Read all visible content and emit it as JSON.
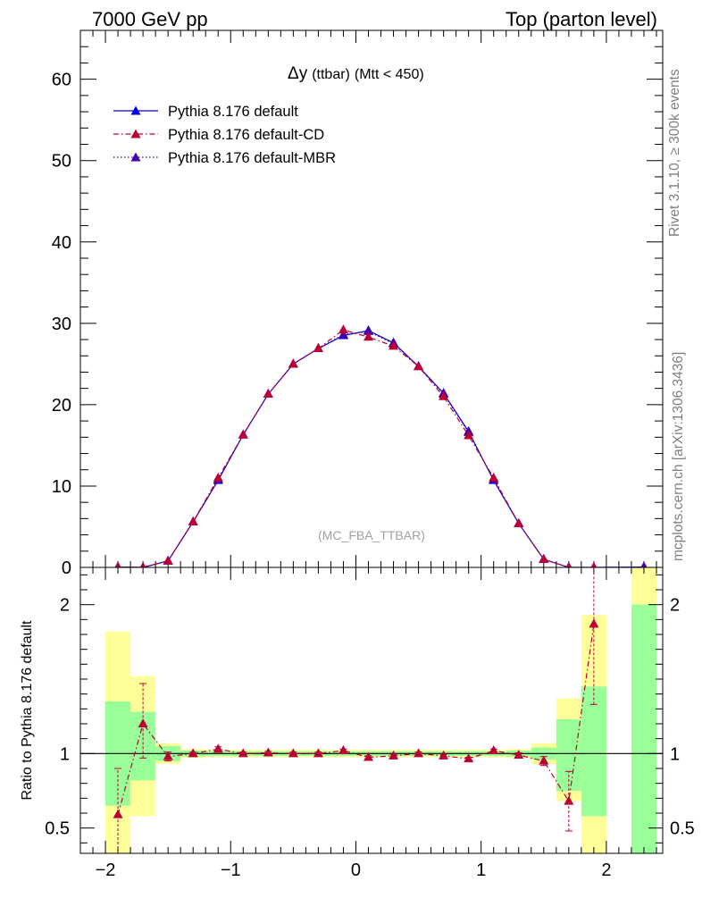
{
  "header": {
    "left": "7000 GeV pp",
    "right": "Top (parton level)"
  },
  "side_labels": {
    "rivet": "Rivet 3.1.10, ≥ 300k events",
    "mcplots": "mcplots.cern.ch [arXiv:1306.3436]"
  },
  "chart_data": [
    {
      "type": "line",
      "title": "Δy (ttbar) (Mtt < 450)",
      "title_main": "Δy",
      "title_small": "(ttbar)",
      "title_cut": "(Mtt < 450)",
      "watermark": "(MC_FBA_TTBAR)",
      "xlabel": "",
      "ylabel": "",
      "xlim": [
        -2.2,
        2.45
      ],
      "ylim": [
        0,
        66
      ],
      "yticks": [
        0,
        10,
        20,
        30,
        40,
        50,
        60
      ],
      "ytick_labels": [
        "0",
        "10",
        "20",
        "30",
        "40",
        "50",
        "60"
      ],
      "x": [
        -1.9,
        -1.7,
        -1.5,
        -1.3,
        -1.1,
        -0.9,
        -0.7,
        -0.5,
        -0.3,
        -0.1,
        0.1,
        0.3,
        0.5,
        0.7,
        0.9,
        1.1,
        1.3,
        1.5,
        1.7,
        1.9,
        2.3
      ],
      "series": [
        {
          "name": "Pythia 8.176 default",
          "color": "#0000dd",
          "style": "solid",
          "values": [
            0.05,
            0.0,
            0.8,
            5.6,
            10.7,
            16.3,
            21.3,
            25.0,
            26.9,
            28.5,
            29.1,
            27.6,
            24.7,
            21.4,
            16.7,
            10.7,
            5.4,
            1.0,
            0.0,
            0.0,
            0.05
          ]
        },
        {
          "name": "Pythia 8.176 default-CD",
          "color": "#bb0033",
          "style": "dashdot",
          "values": [
            0.03,
            0.0,
            0.8,
            5.6,
            11.0,
            16.3,
            21.3,
            25.0,
            26.9,
            29.2,
            28.3,
            27.2,
            24.7,
            21.0,
            16.2,
            11.0,
            5.4,
            1.0,
            0.0,
            0.0,
            null
          ]
        },
        {
          "name": "Pythia 8.176 default-MBR",
          "color": "#4400aa",
          "style": "dotted",
          "values": [
            0.05,
            0.0,
            0.8,
            5.6,
            10.8,
            16.3,
            21.3,
            25.0,
            26.9,
            28.6,
            29.0,
            27.5,
            24.7,
            21.3,
            16.6,
            10.8,
            5.4,
            1.0,
            0.0,
            0.0,
            0.05
          ]
        }
      ]
    },
    {
      "type": "line",
      "title": "",
      "xlabel": "",
      "ylabel": "Ratio to Pythia 8.176 default",
      "xlim": [
        -2.2,
        2.45
      ],
      "ylim": [
        0.33,
        2.25
      ],
      "xticks": [
        -2,
        -1,
        0,
        1,
        2
      ],
      "xtick_labels": [
        "−2",
        "−1",
        "0",
        "1",
        "2"
      ],
      "yticks": [
        0.5,
        1,
        2
      ],
      "ytick_labels": [
        "0.5",
        "1",
        "2"
      ],
      "reference": 1,
      "bins": [
        -2.0,
        -1.8,
        -1.6,
        -1.4,
        -1.2,
        -1.0,
        -0.8,
        -0.6,
        -0.4,
        -0.2,
        0.0,
        0.2,
        0.4,
        0.6,
        0.8,
        1.0,
        1.2,
        1.4,
        1.6,
        1.8,
        2.0,
        2.2,
        2.4
      ],
      "band_green": [
        [
          0.65,
          1.35
        ],
        [
          0.82,
          1.28
        ],
        [
          0.95,
          1.05
        ],
        [
          0.98,
          1.02
        ],
        [
          0.985,
          1.015
        ],
        [
          0.985,
          1.015
        ],
        [
          0.985,
          1.015
        ],
        [
          0.985,
          1.015
        ],
        [
          0.985,
          1.015
        ],
        [
          0.985,
          1.015
        ],
        [
          0.985,
          1.015
        ],
        [
          0.985,
          1.015
        ],
        [
          0.985,
          1.015
        ],
        [
          0.985,
          1.015
        ],
        [
          0.985,
          1.015
        ],
        [
          0.985,
          1.015
        ],
        [
          0.98,
          1.02
        ],
        [
          0.96,
          1.04
        ],
        [
          0.75,
          1.23
        ],
        [
          0.58,
          1.45
        ],
        null,
        [
          0.33,
          2.0
        ]
      ],
      "band_yellow": [
        [
          0.33,
          1.82
        ],
        [
          0.58,
          1.52
        ],
        [
          0.93,
          1.07
        ],
        [
          0.97,
          1.03
        ],
        [
          0.975,
          1.025
        ],
        [
          0.975,
          1.025
        ],
        [
          0.975,
          1.025
        ],
        [
          0.975,
          1.025
        ],
        [
          0.975,
          1.025
        ],
        [
          0.975,
          1.025
        ],
        [
          0.975,
          1.025
        ],
        [
          0.975,
          1.025
        ],
        [
          0.975,
          1.025
        ],
        [
          0.975,
          1.025
        ],
        [
          0.975,
          1.025
        ],
        [
          0.975,
          1.025
        ],
        [
          0.97,
          1.03
        ],
        [
          0.93,
          1.07
        ],
        [
          0.68,
          1.37
        ],
        [
          0.33,
          1.93
        ],
        null,
        [
          0.33,
          2.25
        ]
      ],
      "x": [
        -1.9,
        -1.7,
        -1.5,
        -1.3,
        -1.1,
        -0.9,
        -0.7,
        -0.5,
        -0.3,
        -0.1,
        0.1,
        0.3,
        0.5,
        0.7,
        0.9,
        1.1,
        1.3,
        1.5,
        1.7,
        1.9
      ],
      "series": [
        {
          "name": "Pythia 8.176 default-CD",
          "color": "#bb0033",
          "style": "dashdot",
          "values": [
            0.59,
            1.2,
            0.98,
            1.0,
            1.03,
            1.0,
            1.005,
            1.0,
            1.0,
            1.02,
            0.975,
            0.985,
            1.0,
            0.985,
            0.965,
            1.02,
            0.99,
            0.95,
            0.68,
            1.87
          ],
          "err_low": [
            0.33,
            0.97,
            0.95,
            0.99,
            1.015,
            0.99,
            0.995,
            0.99,
            0.99,
            1.01,
            0.965,
            0.975,
            0.99,
            0.975,
            0.955,
            1.01,
            0.975,
            0.92,
            0.48,
            1.33
          ],
          "err_high": [
            0.9,
            1.47,
            1.01,
            1.01,
            1.045,
            1.01,
            1.015,
            1.01,
            1.01,
            1.03,
            0.985,
            0.995,
            1.01,
            0.995,
            0.975,
            1.03,
            1.005,
            0.98,
            0.88,
            2.25
          ]
        }
      ]
    }
  ]
}
